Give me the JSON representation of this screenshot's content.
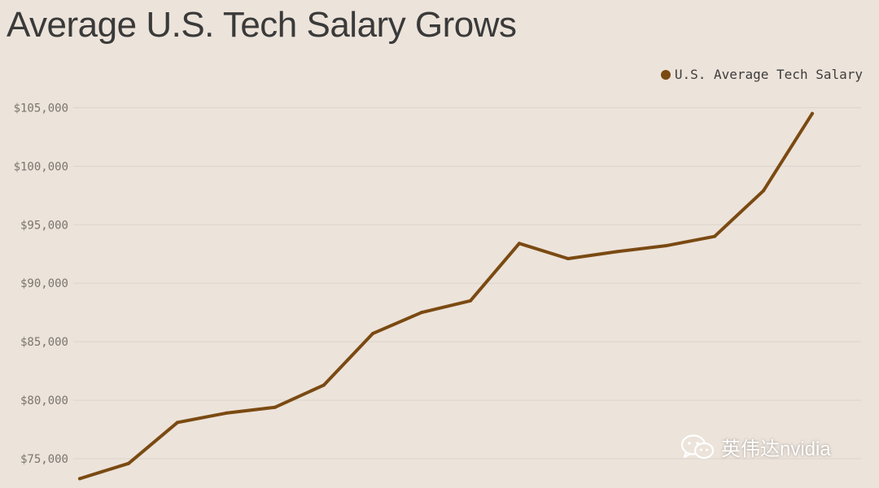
{
  "title": "Average U.S. Tech Salary Grows",
  "watermark_text": "英伟达nvidia",
  "watermark_icon": "wechat-icon",
  "colors": {
    "series": "#7a4a12",
    "grid": "#ddd5cc",
    "background": "#ece3da"
  },
  "chart_data": {
    "type": "line",
    "title": "Average U.S. Tech Salary Grows",
    "xlabel": "",
    "ylabel": "",
    "ylim": [
      72500,
      106000
    ],
    "yticks": [
      75000,
      80000,
      85000,
      90000,
      95000,
      100000,
      105000
    ],
    "ytick_labels": [
      "$75,000",
      "$80,000",
      "$85,000",
      "$90,000",
      "$95,000",
      "$100,000",
      "$105,000"
    ],
    "grid": true,
    "legend_position": "top-right",
    "series": [
      {
        "name": "U.S. Average Tech Salary",
        "values": [
          73300,
          74600,
          78100,
          78900,
          79400,
          81300,
          85700,
          87500,
          88500,
          93400,
          92100,
          92700,
          93200,
          94000,
          97900,
          104500
        ]
      }
    ]
  }
}
